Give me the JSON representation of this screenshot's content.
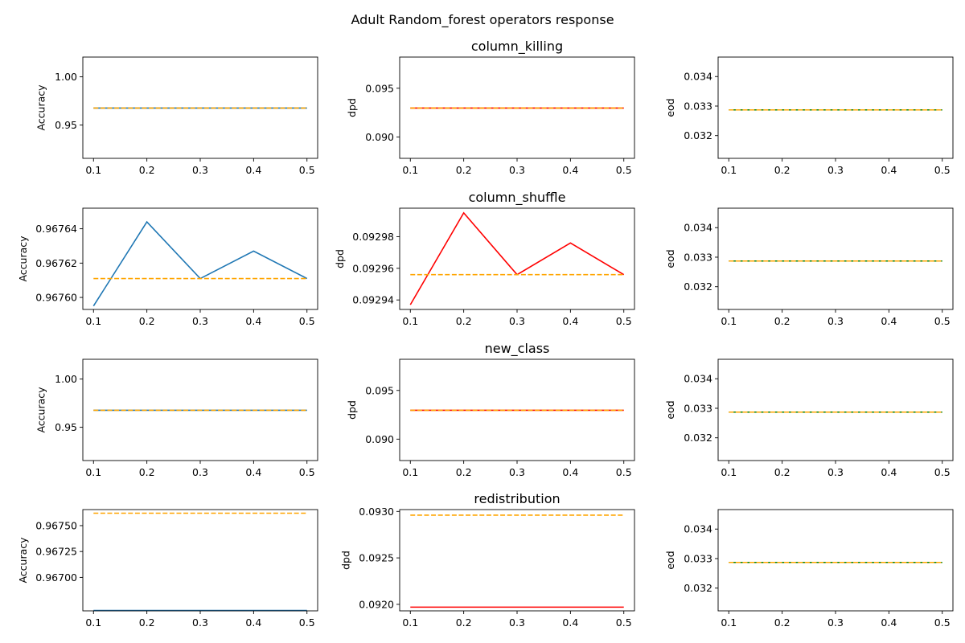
{
  "figure": {
    "suptitle": "Adult Random_forest operators response"
  },
  "chart_data": [
    {
      "type": "line",
      "row": 0,
      "col": 0,
      "title": "",
      "ylabel": "Accuracy",
      "x": [
        0.1,
        0.2,
        0.3,
        0.4,
        0.5
      ],
      "ylim": [
        0.9155,
        1.0205
      ],
      "yticks": [
        0.95,
        1.0
      ],
      "ytick_labels": [
        "0.95",
        "1.00"
      ],
      "series": [
        {
          "values": [
            0.96761,
            0.96761,
            0.96761,
            0.96761,
            0.96761
          ],
          "color": "#1f77b4",
          "style": "solid"
        },
        {
          "values": [
            0.96761,
            0.96761,
            0.96761,
            0.96761,
            0.96761
          ],
          "color": "#ffa500",
          "style": "dashed"
        }
      ]
    },
    {
      "type": "line",
      "row": 0,
      "col": 1,
      "title": "column_killing",
      "ylabel": "dpd",
      "x": [
        0.1,
        0.2,
        0.3,
        0.4,
        0.5
      ],
      "ylim": [
        0.0878,
        0.0982
      ],
      "yticks": [
        0.09,
        0.095
      ],
      "ytick_labels": [
        "0.090",
        "0.095"
      ],
      "series": [
        {
          "values": [
            0.09296,
            0.09296,
            0.09296,
            0.09296,
            0.09296
          ],
          "color": "#ff0000",
          "style": "solid"
        },
        {
          "values": [
            0.09296,
            0.09296,
            0.09296,
            0.09296,
            0.09296
          ],
          "color": "#ffa500",
          "style": "dashed"
        }
      ]
    },
    {
      "type": "line",
      "row": 0,
      "col": 2,
      "title": "",
      "ylabel": "eod",
      "x": [
        0.1,
        0.2,
        0.3,
        0.4,
        0.5
      ],
      "ylim": [
        0.03123,
        0.03466
      ],
      "yticks": [
        0.032,
        0.033,
        0.034
      ],
      "ytick_labels": [
        "0.032",
        "0.033",
        "0.034"
      ],
      "series": [
        {
          "values": [
            0.03287,
            0.03287,
            0.03287,
            0.03287,
            0.03287
          ],
          "color": "#008000",
          "style": "solid"
        },
        {
          "values": [
            0.03287,
            0.03287,
            0.03287,
            0.03287,
            0.03287
          ],
          "color": "#ffa500",
          "style": "dashed"
        }
      ]
    },
    {
      "type": "line",
      "row": 1,
      "col": 0,
      "title": "",
      "ylabel": "Accuracy",
      "x": [
        0.1,
        0.2,
        0.3,
        0.4,
        0.5
      ],
      "ylim": [
        0.967593,
        0.967652
      ],
      "yticks": [
        0.9676,
        0.96762,
        0.96764
      ],
      "ytick_labels": [
        "0.96760",
        "0.96762",
        "0.96764"
      ],
      "series": [
        {
          "values": [
            0.967595,
            0.967644,
            0.967611,
            0.967627,
            0.967611
          ],
          "color": "#1f77b4",
          "style": "solid"
        },
        {
          "values": [
            0.967611,
            0.967611,
            0.967611,
            0.967611,
            0.967611
          ],
          "color": "#ffa500",
          "style": "dashed"
        }
      ]
    },
    {
      "type": "line",
      "row": 1,
      "col": 1,
      "title": "column_shuffle",
      "ylabel": "dpd",
      "x": [
        0.1,
        0.2,
        0.3,
        0.4,
        0.5
      ],
      "ylim": [
        0.092934,
        0.092998
      ],
      "yticks": [
        0.09294,
        0.09296,
        0.09298
      ],
      "ytick_labels": [
        "0.09294",
        "0.09296",
        "0.09298"
      ],
      "series": [
        {
          "values": [
            0.092937,
            0.092995,
            0.092956,
            0.092976,
            0.092956
          ],
          "color": "#ff0000",
          "style": "solid"
        },
        {
          "values": [
            0.092956,
            0.092956,
            0.092956,
            0.092956,
            0.092956
          ],
          "color": "#ffa500",
          "style": "dashed"
        }
      ]
    },
    {
      "type": "line",
      "row": 1,
      "col": 2,
      "title": "",
      "ylabel": "eod",
      "x": [
        0.1,
        0.2,
        0.3,
        0.4,
        0.5
      ],
      "ylim": [
        0.03123,
        0.03466
      ],
      "yticks": [
        0.032,
        0.033,
        0.034
      ],
      "ytick_labels": [
        "0.032",
        "0.033",
        "0.034"
      ],
      "series": [
        {
          "values": [
            0.03287,
            0.03287,
            0.03287,
            0.03287,
            0.03287
          ],
          "color": "#008000",
          "style": "solid"
        },
        {
          "values": [
            0.03287,
            0.03287,
            0.03287,
            0.03287,
            0.03287
          ],
          "color": "#ffa500",
          "style": "dashed"
        }
      ]
    },
    {
      "type": "line",
      "row": 2,
      "col": 0,
      "title": "",
      "ylabel": "Accuracy",
      "x": [
        0.1,
        0.2,
        0.3,
        0.4,
        0.5
      ],
      "ylim": [
        0.9155,
        1.0205
      ],
      "yticks": [
        0.95,
        1.0
      ],
      "ytick_labels": [
        "0.95",
        "1.00"
      ],
      "series": [
        {
          "values": [
            0.96761,
            0.96761,
            0.96761,
            0.96761,
            0.96761
          ],
          "color": "#1f77b4",
          "style": "solid"
        },
        {
          "values": [
            0.96761,
            0.96761,
            0.96761,
            0.96761,
            0.96761
          ],
          "color": "#ffa500",
          "style": "dashed"
        }
      ]
    },
    {
      "type": "line",
      "row": 2,
      "col": 1,
      "title": "new_class",
      "ylabel": "dpd",
      "x": [
        0.1,
        0.2,
        0.3,
        0.4,
        0.5
      ],
      "ylim": [
        0.0878,
        0.0982
      ],
      "yticks": [
        0.09,
        0.095
      ],
      "ytick_labels": [
        "0.090",
        "0.095"
      ],
      "series": [
        {
          "values": [
            0.09296,
            0.09296,
            0.09296,
            0.09296,
            0.09296
          ],
          "color": "#ff0000",
          "style": "solid"
        },
        {
          "values": [
            0.09296,
            0.09296,
            0.09296,
            0.09296,
            0.09296
          ],
          "color": "#ffa500",
          "style": "dashed"
        }
      ]
    },
    {
      "type": "line",
      "row": 2,
      "col": 2,
      "title": "",
      "ylabel": "eod",
      "x": [
        0.1,
        0.2,
        0.3,
        0.4,
        0.5
      ],
      "ylim": [
        0.03123,
        0.03466
      ],
      "yticks": [
        0.032,
        0.033,
        0.034
      ],
      "ytick_labels": [
        "0.032",
        "0.033",
        "0.034"
      ],
      "series": [
        {
          "values": [
            0.03287,
            0.03287,
            0.03287,
            0.03287,
            0.03287
          ],
          "color": "#008000",
          "style": "solid"
        },
        {
          "values": [
            0.03287,
            0.03287,
            0.03287,
            0.03287,
            0.03287
          ],
          "color": "#ffa500",
          "style": "dashed"
        }
      ]
    },
    {
      "type": "line",
      "row": 3,
      "col": 0,
      "title": "",
      "ylabel": "Accuracy",
      "x": [
        0.1,
        0.2,
        0.3,
        0.4,
        0.5
      ],
      "ylim": [
        0.966677,
        0.967655
      ],
      "yticks": [
        0.967,
        0.96725,
        0.9675
      ],
      "ytick_labels": [
        "0.96700",
        "0.96725",
        "0.96750"
      ],
      "series": [
        {
          "values": [
            0.96668,
            0.96668,
            0.96668,
            0.96668,
            0.96668
          ],
          "color": "#1f77b4",
          "style": "solid"
        },
        {
          "values": [
            0.96762,
            0.96762,
            0.96762,
            0.96762,
            0.96762
          ],
          "color": "#ffa500",
          "style": "dashed"
        }
      ]
    },
    {
      "type": "line",
      "row": 3,
      "col": 1,
      "title": "redistribution",
      "ylabel": "dpd",
      "x": [
        0.1,
        0.2,
        0.3,
        0.4,
        0.5
      ],
      "ylim": [
        0.09193,
        0.09302
      ],
      "yticks": [
        0.092,
        0.0925,
        0.093
      ],
      "ytick_labels": [
        "0.0920",
        "0.0925",
        "0.0930"
      ],
      "series": [
        {
          "values": [
            0.09197,
            0.09197,
            0.09197,
            0.09197,
            0.09197
          ],
          "color": "#ff0000",
          "style": "solid"
        },
        {
          "values": [
            0.09296,
            0.09296,
            0.09296,
            0.09296,
            0.09296
          ],
          "color": "#ffa500",
          "style": "dashed"
        }
      ]
    },
    {
      "type": "line",
      "row": 3,
      "col": 2,
      "title": "",
      "ylabel": "eod",
      "x": [
        0.1,
        0.2,
        0.3,
        0.4,
        0.5
      ],
      "ylim": [
        0.03123,
        0.03466
      ],
      "yticks": [
        0.032,
        0.033,
        0.034
      ],
      "ytick_labels": [
        "0.032",
        "0.033",
        "0.034"
      ],
      "series": [
        {
          "values": [
            0.03287,
            0.03287,
            0.03287,
            0.03287,
            0.03287
          ],
          "color": "#008000",
          "style": "solid"
        },
        {
          "values": [
            0.03287,
            0.03287,
            0.03287,
            0.03287,
            0.03287
          ],
          "color": "#ffa500",
          "style": "dashed"
        }
      ]
    }
  ]
}
